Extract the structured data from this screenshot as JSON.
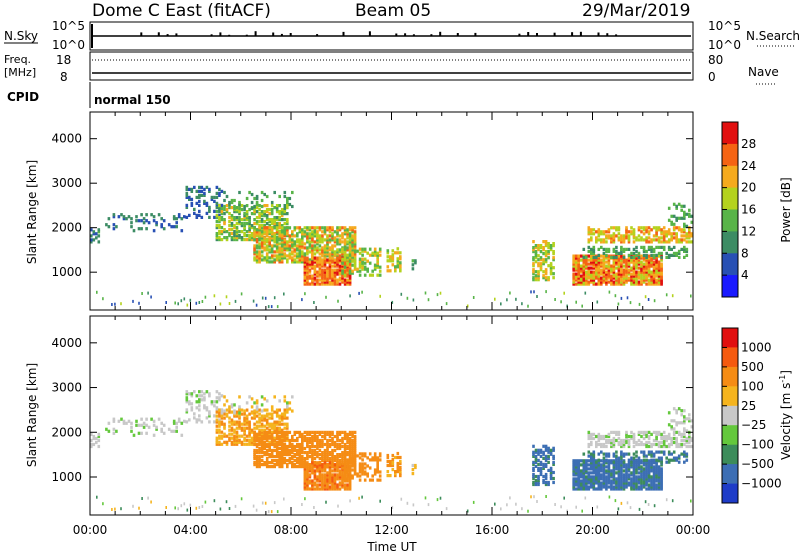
{
  "header": {
    "station": "Dome C East (fitACF)",
    "beam": "Beam 05",
    "date": "29/Mar/2019"
  },
  "status_panels": {
    "nsky_label": "N.Sky",
    "nsky_ticks": [
      "10^5",
      "10^0"
    ],
    "nsearch_label": "N.Search",
    "nsearch_ticks": [
      "10^5",
      "10^0"
    ],
    "freq_label_line1": "Freq.",
    "freq_label_line2": "[MHz]",
    "freq_ticks": [
      "18",
      "8"
    ],
    "nave_label": "Nave",
    "nave_ticks": [
      "80",
      "0"
    ],
    "cpid_label": "CPID",
    "cpid_value": "normal 150"
  },
  "chart_data": [
    {
      "type": "heatmap",
      "name": "power",
      "ylabel": "Slant Range [km]",
      "yticks": [
        1000,
        2000,
        3000,
        4000
      ],
      "ylim": [
        150,
        4600
      ],
      "xlim": [
        0,
        24
      ],
      "colorbar_label": "Power [dB]",
      "colorbar_ticks": [
        "4",
        "8",
        "12",
        "16",
        "20",
        "24",
        "28"
      ],
      "colorbar_colors": [
        "#1a1aff",
        "#2850b4",
        "#3c8c64",
        "#58b448",
        "#b4d21e",
        "#f5aa1e",
        "#f56414",
        "#e10f0f"
      ]
    },
    {
      "type": "heatmap",
      "name": "velocity",
      "ylabel": "Slant Range [km]",
      "yticks": [
        1000,
        2000,
        3000,
        4000
      ],
      "ylim": [
        150,
        4600
      ],
      "xlim": [
        0,
        24
      ],
      "xticks": [
        "00:00",
        "04:00",
        "08:00",
        "12:00",
        "16:00",
        "20:00",
        "00:00"
      ],
      "xlabel": "Time UT",
      "colorbar_label": "Velocity [m s",
      "colorbar_label_sup": "-1",
      "colorbar_label_end": "]",
      "colorbar_ticks": [
        "1000",
        "500",
        "100",
        "25",
        "−25",
        "−100",
        "−500",
        "−1000"
      ],
      "colorbar_colors": [
        "#1e3cc8",
        "#3c6eb4",
        "#3c8c5a",
        "#64c83c",
        "#c8c8c8",
        "#f5b41e",
        "#f58c14",
        "#f55a0f",
        "#e10f0f"
      ]
    }
  ]
}
